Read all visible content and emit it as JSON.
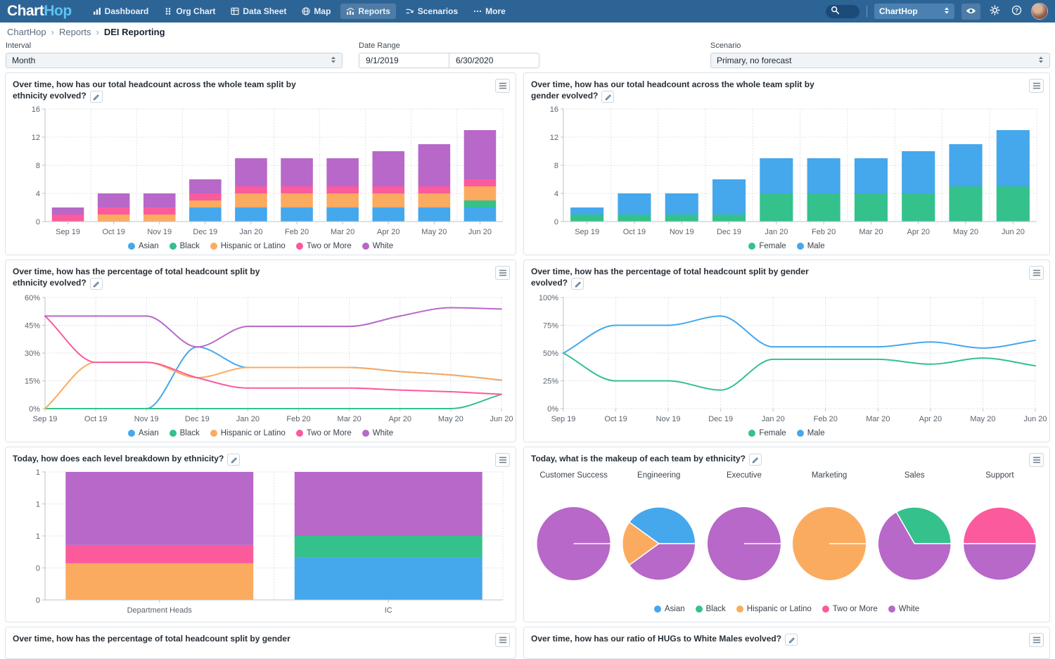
{
  "nav": {
    "logo_part1": "Chart",
    "logo_part2": "Hop",
    "items": [
      {
        "label": "Dashboard"
      },
      {
        "label": "Org Chart"
      },
      {
        "label": "Data Sheet"
      },
      {
        "label": "Map"
      },
      {
        "label": "Reports",
        "active": true
      },
      {
        "label": "Scenarios"
      },
      {
        "label": "More"
      }
    ],
    "org_selector_value": "ChartHop"
  },
  "breadcrumb": {
    "items": [
      "ChartHop",
      "Reports",
      "DEI Reporting"
    ],
    "separator": "›"
  },
  "filters": {
    "interval": {
      "label": "Interval",
      "value": "Month"
    },
    "date_range": {
      "label": "Date Range",
      "start": "9/1/2019",
      "end": "6/30/2020"
    },
    "scenario": {
      "label": "Scenario",
      "value": "Primary, no forecast"
    }
  },
  "colors": {
    "Asian": "#45a7ec",
    "Black": "#34c18c",
    "Hispanic or Latino": "#fbab60",
    "Two or More": "#fb5a9d",
    "White": "#b768c8",
    "Female": "#34c18c",
    "Male": "#45a7ec"
  },
  "chart_data": "see charts[]",
  "charts": [
    {
      "type": "stacked-bar",
      "title": "Over time, how has our total headcount across the whole team split by ethnicity evolved?",
      "categories": [
        "Sep 19",
        "Oct 19",
        "Nov 19",
        "Dec 19",
        "Jan 20",
        "Feb 20",
        "Mar 20",
        "Apr 20",
        "May 20",
        "Jun 20"
      ],
      "series": [
        {
          "name": "Asian",
          "values": [
            0,
            0,
            0,
            2,
            2,
            2,
            2,
            2,
            2,
            2
          ]
        },
        {
          "name": "Black",
          "values": [
            0,
            0,
            0,
            0,
            0,
            0,
            0,
            0,
            0,
            1
          ]
        },
        {
          "name": "Hispanic or Latino",
          "values": [
            0,
            1,
            1,
            1,
            2,
            2,
            2,
            2,
            2,
            2
          ]
        },
        {
          "name": "Two or More",
          "values": [
            1,
            1,
            1,
            1,
            1,
            1,
            1,
            1,
            1,
            1
          ]
        },
        {
          "name": "White",
          "values": [
            1,
            2,
            2,
            2,
            4,
            4,
            4,
            5,
            6,
            7
          ]
        }
      ],
      "ylim": [
        0,
        16
      ],
      "yticks": [
        0,
        4,
        8,
        12,
        16
      ],
      "legend": [
        "Asian",
        "Black",
        "Hispanic or Latino",
        "Two or More",
        "White"
      ]
    },
    {
      "type": "stacked-bar",
      "title": "Over time, how has our total headcount across the whole team split by gender evolved?",
      "categories": [
        "Sep 19",
        "Oct 19",
        "Nov 19",
        "Dec 19",
        "Jan 20",
        "Feb 20",
        "Mar 20",
        "Apr 20",
        "May 20",
        "Jun 20"
      ],
      "series": [
        {
          "name": "Female",
          "values": [
            1,
            1,
            1,
            1,
            4,
            4,
            4,
            4,
            5,
            5
          ]
        },
        {
          "name": "Male",
          "values": [
            1,
            3,
            3,
            5,
            5,
            5,
            5,
            6,
            6,
            8
          ]
        }
      ],
      "ylim": [
        0,
        16
      ],
      "yticks": [
        0,
        4,
        8,
        12,
        16
      ],
      "legend": [
        "Female",
        "Male"
      ]
    },
    {
      "type": "line",
      "title": "Over time, how has the percentage of total headcount split by ethnicity evolved?",
      "categories": [
        "Sep 19",
        "Oct 19",
        "Nov 19",
        "Dec 19",
        "Jan 20",
        "Feb 20",
        "Mar 20",
        "Apr 20",
        "May 20",
        "Jun 20"
      ],
      "series": [
        {
          "name": "Asian",
          "values": [
            0,
            0,
            0,
            33.3,
            22.2,
            22.2,
            22.2,
            20,
            18.2,
            15.4
          ]
        },
        {
          "name": "Black",
          "values": [
            0,
            0,
            0,
            0,
            0,
            0,
            0,
            0,
            0,
            7.7
          ]
        },
        {
          "name": "Hispanic or Latino",
          "values": [
            0,
            25,
            25,
            16.7,
            22.2,
            22.2,
            22.2,
            20,
            18.2,
            15.4
          ]
        },
        {
          "name": "Two or More",
          "values": [
            50,
            25,
            25,
            16.7,
            11.1,
            11.1,
            11.1,
            10,
            9.1,
            7.7
          ]
        },
        {
          "name": "White",
          "values": [
            50,
            50,
            50,
            33.3,
            44.4,
            44.4,
            44.4,
            50,
            54.5,
            53.8
          ]
        }
      ],
      "ylim": [
        0,
        60
      ],
      "yticks": [
        0,
        15,
        30,
        45,
        60
      ],
      "ytick_suffix": "%",
      "legend": [
        "Asian",
        "Black",
        "Hispanic or Latino",
        "Two or More",
        "White"
      ]
    },
    {
      "type": "line",
      "title": "Over time, how has the percentage of total headcount split by gender evolved?",
      "categories": [
        "Sep 19",
        "Oct 19",
        "Nov 19",
        "Dec 19",
        "Jan 20",
        "Feb 20",
        "Mar 20",
        "Apr 20",
        "May 20",
        "Jun 20"
      ],
      "series": [
        {
          "name": "Female",
          "values": [
            50,
            25,
            25,
            16.7,
            44.4,
            44.4,
            44.4,
            40,
            45.5,
            38.5
          ]
        },
        {
          "name": "Male",
          "values": [
            50,
            75,
            75,
            83.3,
            55.6,
            55.6,
            55.6,
            60,
            54.5,
            61.5
          ]
        }
      ],
      "ylim": [
        0,
        100
      ],
      "yticks": [
        0,
        25,
        50,
        75,
        100
      ],
      "ytick_suffix": "%",
      "legend": [
        "Female",
        "Male"
      ]
    },
    {
      "type": "stacked-bar",
      "title": "Today, how does each level breakdown by ethnicity?",
      "categories": [
        "Department Heads",
        "IC"
      ],
      "series": [
        {
          "name": "Asian",
          "values": [
            0,
            0.333
          ]
        },
        {
          "name": "Black",
          "values": [
            0,
            0.167
          ]
        },
        {
          "name": "Hispanic or Latino",
          "values": [
            0.286,
            0
          ]
        },
        {
          "name": "Two or More",
          "values": [
            0.143,
            0
          ]
        },
        {
          "name": "White",
          "values": [
            0.571,
            0.5
          ]
        }
      ],
      "ylim": [
        0,
        1
      ],
      "yticks": [
        0,
        0.25,
        0.5,
        0.75,
        1
      ],
      "ytick_labels": [
        "0",
        "0",
        "1",
        "1",
        "1"
      ],
      "bar_ratio": 0.82
    },
    {
      "type": "pies",
      "title": "Today, what is the makeup of each team by ethnicity?",
      "teams": [
        {
          "name": "Customer Success",
          "slices": [
            {
              "group": "White",
              "fraction": 1
            }
          ]
        },
        {
          "name": "Engineering",
          "slices": [
            {
              "group": "Asian",
              "fraction": 0.4
            },
            {
              "group": "Hispanic or Latino",
              "fraction": 0.2
            },
            {
              "group": "White",
              "fraction": 0.4
            }
          ]
        },
        {
          "name": "Executive",
          "slices": [
            {
              "group": "White",
              "fraction": 1
            }
          ]
        },
        {
          "name": "Marketing",
          "slices": [
            {
              "group": "Hispanic or Latino",
              "fraction": 1
            }
          ]
        },
        {
          "name": "Sales",
          "slices": [
            {
              "group": "Black",
              "fraction": 0.333
            },
            {
              "group": "White",
              "fraction": 0.667
            }
          ]
        },
        {
          "name": "Support",
          "slices": [
            {
              "group": "Two or More",
              "fraction": 0.5
            },
            {
              "group": "White",
              "fraction": 0.5
            }
          ]
        }
      ],
      "legend": [
        "Asian",
        "Black",
        "Hispanic or Latino",
        "Two or More",
        "White"
      ]
    },
    {
      "type": "partial",
      "title": "Over time, how has the percentage of total headcount split by gender"
    },
    {
      "type": "partial",
      "title": "Over time, how has our ratio of HUGs to White Males evolved?"
    }
  ]
}
